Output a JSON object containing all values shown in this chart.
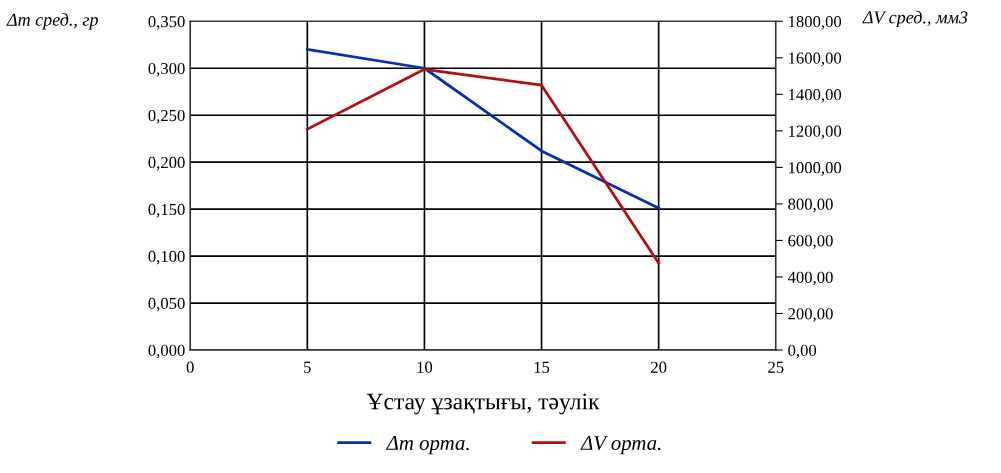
{
  "chart_data": {
    "type": "line",
    "xlabel": "Ұстау ұзақтығы, тәулік",
    "ylabel": "Δm сред., гр",
    "y2label": "ΔV сред., мм3",
    "x": [
      5,
      10,
      15,
      20
    ],
    "series": [
      {
        "name": "Δm орта.",
        "color": "#0033a8",
        "values": [
          0.32,
          0.3,
          0.212,
          0.151
        ]
      },
      {
        "name": "ΔV орта.",
        "color": "#b01010",
        "values": [
          1209,
          1537,
          1450,
          476
        ],
        "axis": "y2"
      }
    ],
    "xlim": [
      0,
      25
    ],
    "xticks": [
      0,
      5,
      10,
      15,
      20,
      25
    ],
    "ylim": [
      0,
      0.35
    ],
    "yticks": [
      {
        "value": 0,
        "label": "0,000"
      },
      {
        "value": 0.05,
        "label": "0,050"
      },
      {
        "value": 0.1,
        "label": "0,100"
      },
      {
        "value": 0.15,
        "label": "0,150"
      },
      {
        "value": 0.2,
        "label": "0,200"
      },
      {
        "value": 0.25,
        "label": "0,250"
      },
      {
        "value": 0.3,
        "label": "0,300"
      },
      {
        "value": 0.35,
        "label": "0,350"
      }
    ],
    "y2lim": [
      0,
      1800
    ],
    "y2ticks": [
      {
        "value": 0,
        "label": "0,00"
      },
      {
        "value": 200,
        "label": "200,00"
      },
      {
        "value": 400,
        "label": "400,00"
      },
      {
        "value": 600,
        "label": "600,00"
      },
      {
        "value": 800,
        "label": "800,00"
      },
      {
        "value": 1000,
        "label": "1000,00"
      },
      {
        "value": 1200,
        "label": "1200,00"
      },
      {
        "value": 1400,
        "label": "1400,00"
      },
      {
        "value": 1600,
        "label": "1600,00"
      },
      {
        "value": 1800,
        "label": "1800,00"
      }
    ],
    "grid": true,
    "legend": "bottom",
    "marker": "none",
    "line_style": "solid"
  }
}
